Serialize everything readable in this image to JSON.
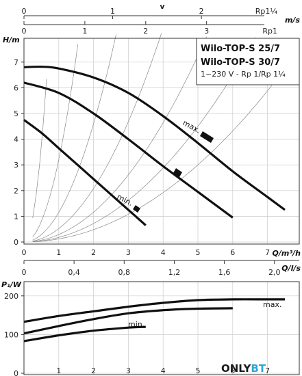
{
  "top_axes": {
    "velocity_label": "v",
    "velocity_unit": "m/s",
    "rp114": {
      "label": "Rp1¼",
      "ticks": [
        "0",
        "1",
        "2"
      ],
      "positions_q": [
        0,
        2.55,
        5.1
      ]
    },
    "rp1": {
      "label": "Rp1",
      "ticks": [
        "0",
        "1",
        "2",
        "3"
      ],
      "positions_q": [
        0,
        1.75,
        3.5,
        5.25
      ]
    }
  },
  "title_box": {
    "line1": "Wilo-TOP-S 25/7",
    "line2": "Wilo-TOP-S 30/7",
    "line3": "1~230 V - Rp 1/Rp 1¼"
  },
  "middle_axis": {
    "label": "Q/l/s",
    "ticks": [
      "0",
      "0,4",
      "0,8",
      "1,2",
      "1,6",
      "2,0"
    ]
  },
  "curve_labels": {
    "max": "max.",
    "min": "min."
  },
  "lower_labels": {
    "max": "max.",
    "min": "min."
  },
  "watermark": {
    "part1": "ONLY",
    "part2": "BT",
    "color1": "#1a1a1a",
    "color2": "#2aa8d8"
  },
  "colors": {
    "curve": "#111111",
    "grid": "#cccccc",
    "system": "#888888",
    "box": "#333333"
  },
  "chart_data": [
    {
      "type": "line",
      "xlabel": "Q/m³/h",
      "ylabel": "H/m",
      "xlim": [
        0,
        8
      ],
      "ylim": [
        0,
        8
      ],
      "xticks": [
        0,
        1,
        2,
        3,
        4,
        5,
        6,
        7
      ],
      "yticks": [
        0,
        1,
        2,
        3,
        4,
        5,
        6,
        7
      ],
      "grid": true,
      "series": [
        {
          "name": "max.",
          "x": [
            0,
            0.5,
            1,
            2,
            3,
            4,
            5,
            6,
            7,
            7.5
          ],
          "y": [
            6.8,
            6.82,
            6.75,
            6.4,
            5.8,
            4.9,
            3.85,
            2.75,
            1.75,
            1.25
          ]
        },
        {
          "name": "",
          "x": [
            0,
            1,
            2,
            3,
            4,
            5,
            6
          ],
          "y": [
            6.2,
            5.8,
            5.0,
            4.0,
            2.95,
            1.95,
            0.95
          ]
        },
        {
          "name": "min.",
          "x": [
            0,
            0.5,
            1,
            1.5,
            2,
            2.5,
            3,
            3.5
          ],
          "y": [
            4.75,
            4.25,
            3.65,
            3.05,
            2.45,
            1.85,
            1.25,
            0.65
          ]
        }
      ],
      "system_curves_k": [
        15,
        3.2,
        1.15,
        0.52,
        0.29,
        0.18,
        0.12
      ]
    },
    {
      "type": "line",
      "xlabel": "",
      "ylabel": "P₁/W",
      "xlim": [
        0,
        8
      ],
      "ylim": [
        0,
        230
      ],
      "yticks": [
        0,
        100,
        200
      ],
      "grid": true,
      "series": [
        {
          "name": "max.",
          "x": [
            0,
            1,
            2,
            3,
            4,
            5,
            6,
            7,
            7.5
          ],
          "y": [
            133,
            148,
            160,
            172,
            182,
            189,
            191,
            191,
            191
          ]
        },
        {
          "name": "",
          "x": [
            0,
            1,
            2,
            3,
            4,
            5,
            6
          ],
          "y": [
            103,
            122,
            140,
            155,
            163,
            167,
            168
          ]
        },
        {
          "name": "min.",
          "x": [
            0,
            1,
            2,
            3,
            3.5
          ],
          "y": [
            83,
            98,
            110,
            118,
            120
          ]
        }
      ]
    }
  ]
}
